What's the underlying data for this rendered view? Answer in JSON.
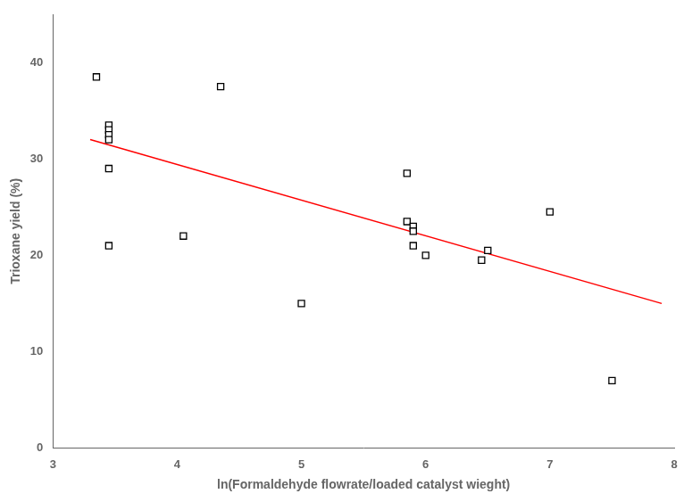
{
  "chart_data": {
    "type": "scatter",
    "xlabel": "ln(Formaldehyde flowrate/loaded catalyst wieght)",
    "ylabel": "Trioxane yield (%)",
    "series": [
      {
        "type": "scatter",
        "marker": "square",
        "color": "black",
        "x": [
          3.35,
          3.45,
          3.45,
          3.45,
          3.45,
          3.45,
          3.45,
          4.05,
          4.35,
          5.0,
          5.85,
          5.85,
          5.9,
          5.9,
          5.9,
          6.0,
          6.45,
          6.5,
          7.0,
          7.5
        ],
        "values": [
          38.5,
          33.5,
          33.0,
          32.5,
          32.0,
          29.0,
          21.0,
          22.0,
          37.5,
          15.0,
          28.5,
          23.5,
          23.0,
          22.5,
          21.0,
          20.0,
          19.5,
          20.5,
          24.5,
          7.0
        ]
      },
      {
        "type": "line",
        "color": "red",
        "line_style": "solid",
        "x": [
          3.3,
          7.9
        ],
        "values": [
          32.0,
          15.0
        ]
      }
    ],
    "xlim": [
      3.0,
      8.0
    ],
    "ylim": [
      0,
      45
    ],
    "xticks": [
      3,
      4,
      5,
      6,
      7,
      8
    ],
    "yticks": [
      0,
      10,
      20,
      30,
      40
    ],
    "grid": false
  }
}
